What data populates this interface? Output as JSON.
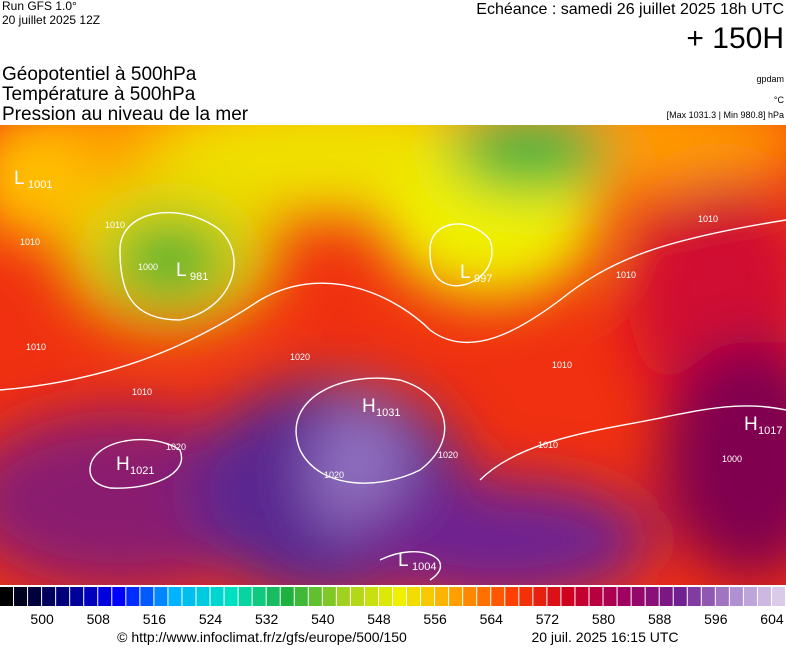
{
  "header": {
    "run": "Run GFS 1.0°",
    "run_date": "20 juillet 2025 12Z",
    "echeance": "Echéance : samedi 26 juillet 2025 18h UTC",
    "lead": "+ 150H",
    "titles": [
      "Géopotentiel à 500hPa",
      "Température à 500hPa",
      "Pression au niveau de la mer"
    ],
    "unit_geo": "gpdam",
    "unit_temp": "°C",
    "extremes": "[Max 1031.3 | Min 980.8] hPa"
  },
  "centers": [
    {
      "type": "L",
      "value": 1001
    },
    {
      "type": "L",
      "value": 981
    },
    {
      "type": "L",
      "value": 997
    },
    {
      "type": "H",
      "value": 1031
    },
    {
      "type": "H",
      "value": 1021
    },
    {
      "type": "H",
      "value": 1017
    },
    {
      "type": "L",
      "value": 1004
    }
  ],
  "isobar_labels": [
    1010,
    1000,
    1010,
    1010,
    1020,
    1010,
    1020,
    1020,
    1020,
    1010,
    1010,
    1010,
    1010,
    1000
  ],
  "colorbar": {
    "lim": [
      494,
      606
    ],
    "ticks": [
      500,
      508,
      516,
      524,
      532,
      540,
      548,
      556,
      564,
      572,
      580,
      588,
      596,
      604
    ],
    "stops": [
      "#000000",
      "#00007a",
      "#0000ff",
      "#00b4ff",
      "#00e0c0",
      "#20b040",
      "#a0d020",
      "#f0f000",
      "#ffa000",
      "#ff4000",
      "#d00020",
      "#a00060",
      "#702090",
      "#b090d0",
      "#e8e0f0"
    ]
  },
  "footer": {
    "source": "© http://www.infoclimat.fr/z/gfs/europe/500/150",
    "generated": "20 juil. 2025 16:15 UTC"
  }
}
